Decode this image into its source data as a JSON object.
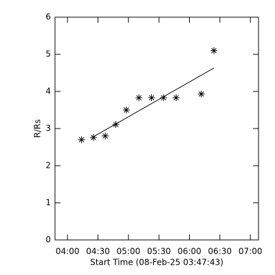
{
  "chart_data": {
    "type": "scatter",
    "xlabel": "Start Time (08-Feb-25 03:47:43)",
    "ylabel": "R/Rs",
    "x": [
      253.8,
      265.5,
      277.2,
      287.6,
      297.9,
      310.3,
      322.8,
      334.5,
      346.9,
      371.7,
      384.1
    ],
    "values": [
      2.7,
      2.76,
      2.8,
      3.11,
      3.5,
      3.83,
      3.83,
      3.83,
      3.83,
      3.93,
      5.1
    ],
    "color": "#000000",
    "fit": {
      "x": [
        265.5,
        384.1
      ],
      "values": [
        2.78,
        4.63
      ]
    },
    "xlim": [
      227.7,
      428
    ],
    "xticks": [
      {
        "value": 240,
        "label": "04:00"
      },
      {
        "value": 270,
        "label": "04:30"
      },
      {
        "value": 300,
        "label": "05:00"
      },
      {
        "value": 330,
        "label": "05:30"
      },
      {
        "value": 360,
        "label": "06:00"
      },
      {
        "value": 390,
        "label": "06:30"
      },
      {
        "value": 420,
        "label": "07:00"
      }
    ],
    "ylim": [
      0,
      6
    ],
    "yticks": [
      0,
      1,
      2,
      3,
      4,
      5,
      6
    ]
  }
}
